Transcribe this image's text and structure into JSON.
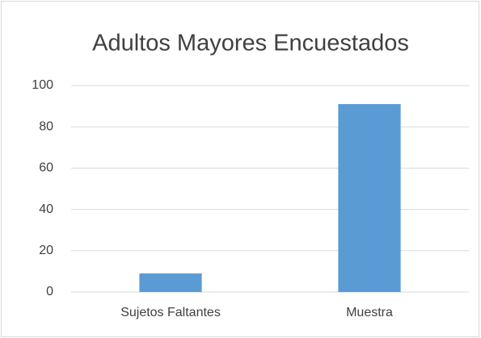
{
  "chart_data": {
    "type": "bar",
    "title": "Adultos Mayores Encuestados",
    "categories": [
      "Sujetos Faltantes",
      "Muestra"
    ],
    "values": [
      9,
      91
    ],
    "color": "#5b9bd5",
    "ylim": [
      0,
      100
    ],
    "yticks": [
      0,
      20,
      40,
      60,
      80,
      100
    ],
    "grid": true
  }
}
